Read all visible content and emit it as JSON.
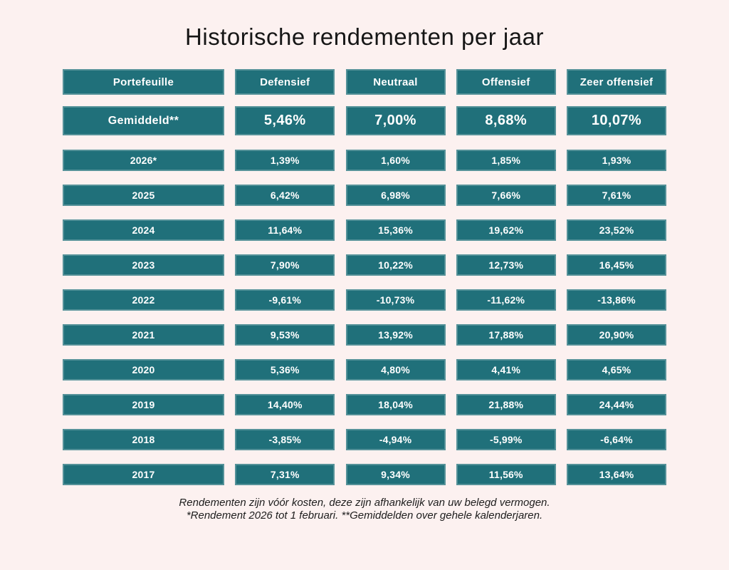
{
  "title": "Historische rendementen per jaar",
  "colors": {
    "cell_background": "#20707a",
    "cell_border_highlight": "#5a949c",
    "page_background": "#fcf1f0",
    "cell_text": "#ffffff",
    "title_text": "#161616"
  },
  "chart_data": {
    "type": "table",
    "title": "Historische rendementen per jaar",
    "columns": [
      "Portefeuille",
      "Defensief",
      "Neutraal",
      "Offensief",
      "Zeer offensief"
    ],
    "average_row": {
      "label": "Gemiddeld**",
      "values": [
        "5,46%",
        "7,00%",
        "8,68%",
        "10,07%"
      ]
    },
    "rows": [
      {
        "label": "2026*",
        "values": [
          "1,39%",
          "1,60%",
          "1,85%",
          "1,93%"
        ]
      },
      {
        "label": "2025",
        "values": [
          "6,42%",
          "6,98%",
          "7,66%",
          "7,61%"
        ]
      },
      {
        "label": "2024",
        "values": [
          "11,64%",
          "15,36%",
          "19,62%",
          "23,52%"
        ]
      },
      {
        "label": "2023",
        "values": [
          "7,90%",
          "10,22%",
          "12,73%",
          "16,45%"
        ]
      },
      {
        "label": "2022",
        "values": [
          "-9,61%",
          "-10,73%",
          "-11,62%",
          "-13,86%"
        ]
      },
      {
        "label": "2021",
        "values": [
          "9,53%",
          "13,92%",
          "17,88%",
          "20,90%"
        ]
      },
      {
        "label": "2020",
        "values": [
          "5,36%",
          "4,80%",
          "4,41%",
          "4,65%"
        ]
      },
      {
        "label": "2019",
        "values": [
          "14,40%",
          "18,04%",
          "21,88%",
          "24,44%"
        ]
      },
      {
        "label": "2018",
        "values": [
          "-3,85%",
          "-4,94%",
          "-5,99%",
          "-6,64%"
        ]
      },
      {
        "label": "2017",
        "values": [
          "7,31%",
          "9,34%",
          "11,56%",
          "13,64%"
        ]
      }
    ]
  },
  "footnote": {
    "line1": "Rendementen zijn vóór kosten, deze zijn afhankelijk van uw belegd vermogen.",
    "line2": "*Rendement 2026 tot 1 februari. **Gemiddelden over gehele kalenderjaren."
  }
}
